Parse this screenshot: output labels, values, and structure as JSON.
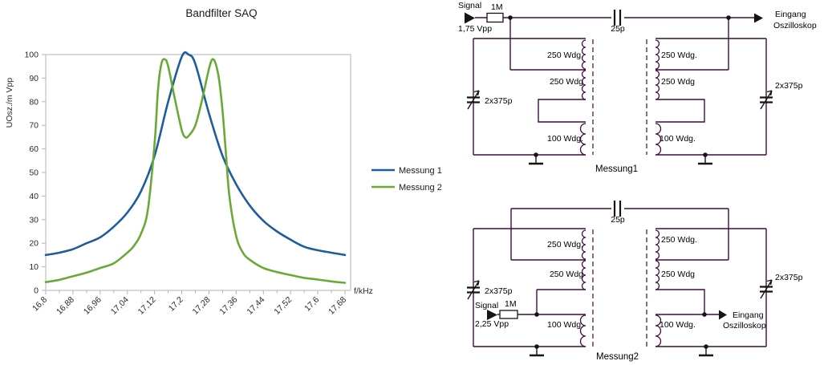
{
  "chart_data": {
    "type": "line",
    "title": "Bandfilter SAQ",
    "xlabel": "f/kHz",
    "ylabel": "UOsz./m Vpp",
    "xlim": [
      16.8,
      17.68
    ],
    "ylim": [
      0,
      100
    ],
    "grid": false,
    "legend_position": "right",
    "x_tick_labels": [
      "16,8",
      "16,88",
      "16,96",
      "17,04",
      "17,12",
      "17,2",
      "17,28",
      "17,36",
      "17,44",
      "17,52",
      "17,6",
      "17,68"
    ],
    "x_tick_values": [
      16.8,
      16.88,
      16.96,
      17.04,
      17.12,
      17.2,
      17.28,
      17.36,
      17.44,
      17.52,
      17.6,
      17.68
    ],
    "x_minor_step": 0.04,
    "y_tick_values": [
      0,
      10,
      20,
      30,
      40,
      50,
      60,
      70,
      80,
      90,
      100
    ],
    "series": [
      {
        "name": "Messung 1",
        "color": "#1E5C9E",
        "points": [
          [
            16.8,
            15
          ],
          [
            16.84,
            16
          ],
          [
            16.88,
            17.5
          ],
          [
            16.92,
            20
          ],
          [
            16.96,
            22.5
          ],
          [
            17.0,
            27
          ],
          [
            17.04,
            33
          ],
          [
            17.08,
            42
          ],
          [
            17.12,
            57
          ],
          [
            17.16,
            80
          ],
          [
            17.2,
            99
          ],
          [
            17.22,
            100
          ],
          [
            17.24,
            96
          ],
          [
            17.28,
            75
          ],
          [
            17.32,
            57
          ],
          [
            17.36,
            45
          ],
          [
            17.4,
            36
          ],
          [
            17.44,
            29.5
          ],
          [
            17.48,
            25
          ],
          [
            17.52,
            21.5
          ],
          [
            17.56,
            18.5
          ],
          [
            17.6,
            17
          ],
          [
            17.64,
            16
          ],
          [
            17.68,
            15
          ]
        ]
      },
      {
        "name": "Messung 2",
        "color": "#6BA937",
        "points": [
          [
            16.8,
            3.5
          ],
          [
            16.84,
            4.5
          ],
          [
            16.88,
            6
          ],
          [
            16.92,
            7.5
          ],
          [
            16.96,
            9.5
          ],
          [
            17.0,
            11.5
          ],
          [
            17.04,
            16
          ],
          [
            17.06,
            19
          ],
          [
            17.08,
            24
          ],
          [
            17.1,
            34
          ],
          [
            17.12,
            62
          ],
          [
            17.13,
            85
          ],
          [
            17.14,
            96
          ],
          [
            17.15,
            98
          ],
          [
            17.16,
            95
          ],
          [
            17.18,
            81
          ],
          [
            17.2,
            68
          ],
          [
            17.21,
            65
          ],
          [
            17.22,
            65.5
          ],
          [
            17.24,
            70
          ],
          [
            17.26,
            81
          ],
          [
            17.28,
            94
          ],
          [
            17.29,
            98
          ],
          [
            17.3,
            96
          ],
          [
            17.31,
            89
          ],
          [
            17.32,
            76
          ],
          [
            17.33,
            58
          ],
          [
            17.34,
            40
          ],
          [
            17.36,
            23
          ],
          [
            17.38,
            16
          ],
          [
            17.4,
            13
          ],
          [
            17.44,
            9.5
          ],
          [
            17.48,
            7.8
          ],
          [
            17.52,
            6.5
          ],
          [
            17.56,
            5.3
          ],
          [
            17.6,
            4.6
          ],
          [
            17.64,
            3.8
          ],
          [
            17.68,
            3.2
          ]
        ]
      }
    ]
  },
  "circuits": {
    "m1": {
      "name": "Messung1",
      "signal_label": "Signal",
      "signal_level": "1,75 Vpp",
      "series_resistor": "1M",
      "coupling_cap": "25p",
      "left_tuning_cap": "2x375p",
      "right_tuning_cap": "2x375p",
      "windings_left": [
        "250 Wdg.",
        "250 Wdg",
        "100 Wdg."
      ],
      "windings_right": [
        "250 Wdg.",
        "250 Wdg",
        "100 Wdg."
      ],
      "output_line1": "Eingang",
      "output_line2": "Oszilloskop"
    },
    "m2": {
      "name": "Messung2",
      "signal_label": "Signal",
      "signal_level": "2,25 Vpp",
      "series_resistor": "1M",
      "coupling_cap": "25p",
      "left_tuning_cap": "2x375p",
      "right_tuning_cap": "2x375p",
      "windings_left": [
        "250 Wdg.",
        "250 Wdg",
        "100 Wdg."
      ],
      "windings_right": [
        "250 Wdg.",
        "250 Wdg",
        "100 Wdg."
      ],
      "output_line1": "Eingang",
      "output_line2": "Oszilloskop"
    }
  }
}
